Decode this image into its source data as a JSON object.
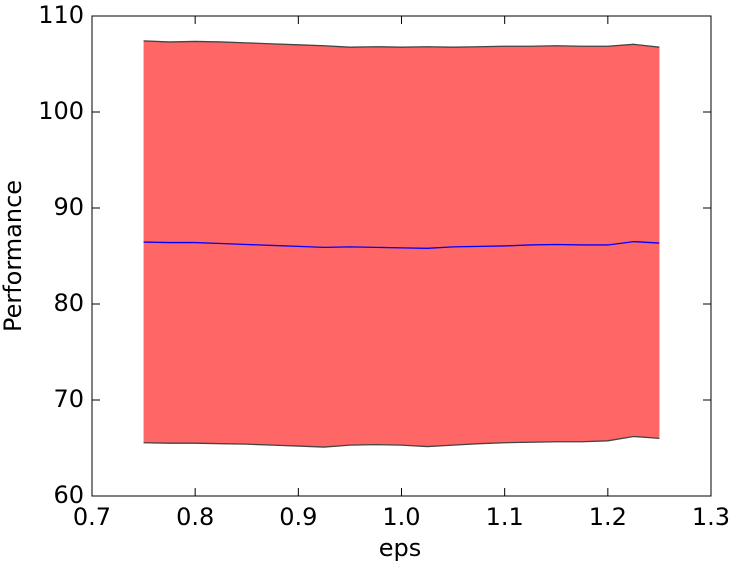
{
  "chart_data": {
    "type": "line",
    "x_label": "eps",
    "y_label": "Performance",
    "x": [
      0.75,
      0.775,
      0.8,
      0.825,
      0.85,
      0.875,
      0.9,
      0.925,
      0.95,
      0.975,
      1.0,
      1.025,
      1.05,
      1.075,
      1.1,
      1.125,
      1.15,
      1.175,
      1.2,
      1.225,
      1.25
    ],
    "series": [
      {
        "color": "#0000ff",
        "values": [
          86.45,
          86.4,
          86.4,
          86.3,
          86.2,
          86.1,
          86.0,
          85.9,
          85.95,
          85.9,
          85.85,
          85.8,
          85.95,
          86.0,
          86.05,
          86.15,
          86.2,
          86.15,
          86.15,
          86.5,
          86.35
        ]
      }
    ],
    "band": {
      "color": "#ff6666",
      "edge_color": "#444444",
      "upper": [
        107.4,
        107.3,
        107.35,
        107.3,
        107.2,
        107.1,
        107.0,
        106.9,
        106.75,
        106.8,
        106.75,
        106.8,
        106.75,
        106.8,
        106.85,
        106.85,
        106.9,
        106.85,
        106.85,
        107.05,
        106.75
      ],
      "lower": [
        65.55,
        65.5,
        65.5,
        65.45,
        65.4,
        65.3,
        65.2,
        65.1,
        65.3,
        65.35,
        65.3,
        65.15,
        65.3,
        65.45,
        65.55,
        65.6,
        65.65,
        65.65,
        65.75,
        66.2,
        66.0
      ]
    },
    "xlim": [
      0.7,
      1.3
    ],
    "ylim": [
      60,
      110
    ],
    "xticks": [
      0.7,
      0.8,
      0.9,
      {
        "value": 1,
        "label": "1.0"
      },
      1.1,
      1.2,
      1.3
    ],
    "yticks": [
      60,
      70,
      80,
      90,
      100,
      110
    ],
    "grid": false
  }
}
